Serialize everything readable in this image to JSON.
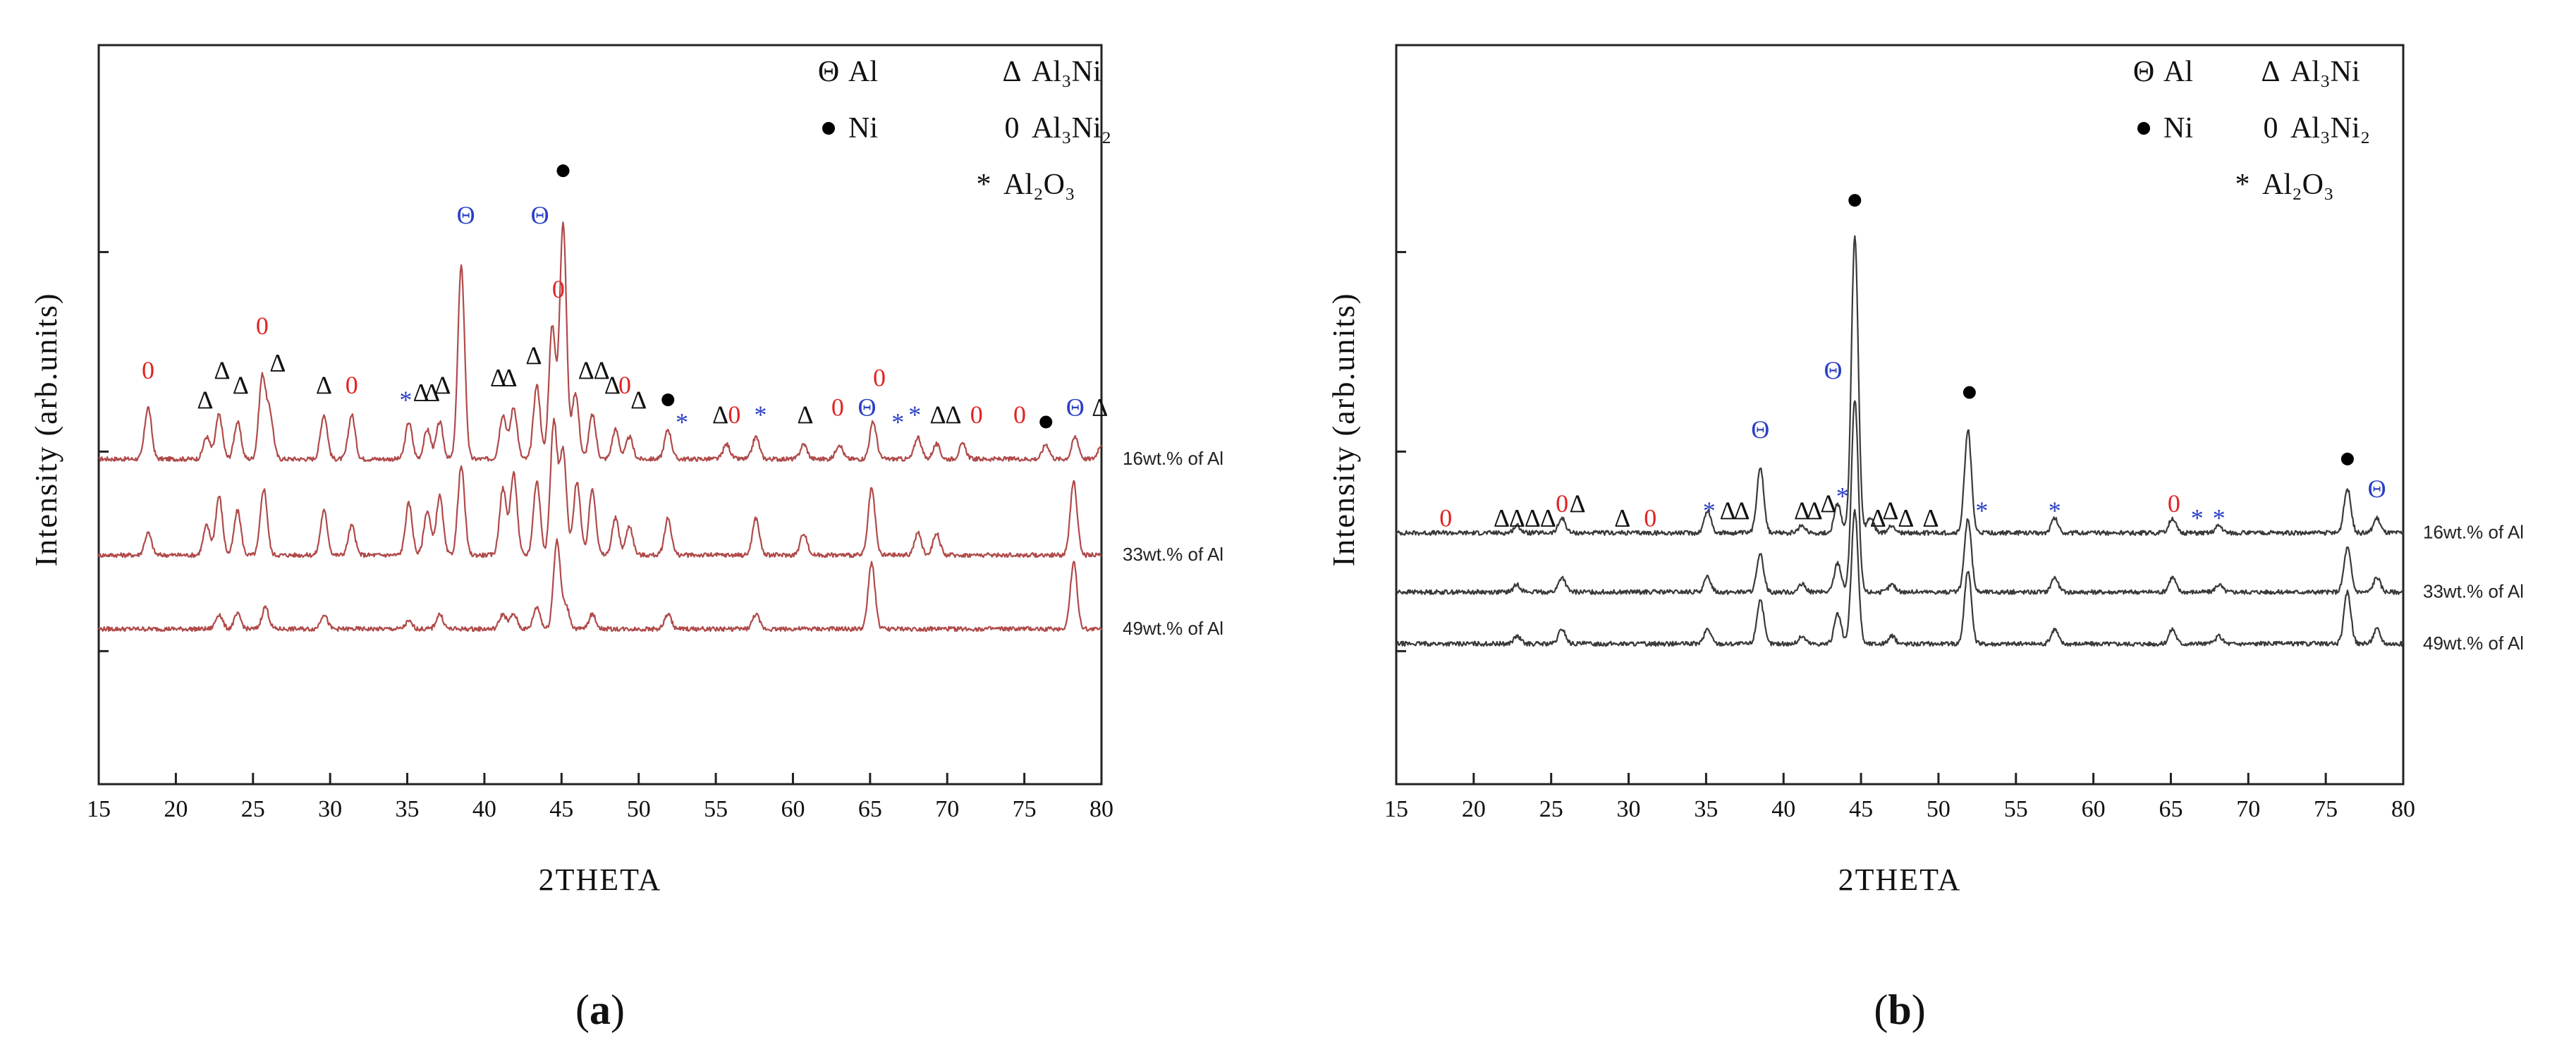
{
  "chart_data": [
    {
      "id": "a",
      "type": "line",
      "caption_open": "(",
      "caption_letter": "a",
      "caption_close": ")",
      "xlabel": "2THETA",
      "ylabel": "Intensity (arb.units)",
      "xlim": [
        15,
        80
      ],
      "xticks": [
        15,
        20,
        25,
        30,
        35,
        40,
        45,
        50,
        55,
        60,
        65,
        70,
        75,
        80
      ],
      "line_color": "#b04a4a",
      "legend": [
        {
          "symbol": "Θ",
          "text": "Al",
          "color": "#2b3fc4"
        },
        {
          "symbol": "Δ",
          "text": "Al₃Ni",
          "color": "#111111"
        },
        {
          "symbol": "●",
          "text": "Ni",
          "color": "#000000"
        },
        {
          "symbol": "0",
          "text": "Al₃Ni₂",
          "color": "#e02424"
        },
        {
          "symbol": "*",
          "text": "Al₂O₃",
          "color": "#2b3fc4"
        }
      ],
      "series": [
        {
          "name": "16wt.% of Al",
          "baseline": 0.44,
          "peaks": [
            [
              18.2,
              0.07
            ],
            [
              22.0,
              0.03
            ],
            [
              22.8,
              0.06
            ],
            [
              24.0,
              0.05
            ],
            [
              25.6,
              0.11
            ],
            [
              26.1,
              0.06
            ],
            [
              29.6,
              0.06
            ],
            [
              31.4,
              0.06
            ],
            [
              35.1,
              0.05
            ],
            [
              36.3,
              0.04
            ],
            [
              37.1,
              0.05
            ],
            [
              38.5,
              0.26
            ],
            [
              41.2,
              0.06
            ],
            [
              41.9,
              0.07
            ],
            [
              43.4,
              0.1
            ],
            [
              44.4,
              0.18
            ],
            [
              45.1,
              0.32
            ],
            [
              45.9,
              0.09
            ],
            [
              47.0,
              0.06
            ],
            [
              48.5,
              0.04
            ],
            [
              49.4,
              0.03
            ],
            [
              51.9,
              0.04
            ],
            [
              55.7,
              0.02
            ],
            [
              57.6,
              0.03
            ],
            [
              60.7,
              0.02
            ],
            [
              63.0,
              0.02
            ],
            [
              65.2,
              0.05
            ],
            [
              68.1,
              0.03
            ],
            [
              69.3,
              0.02
            ],
            [
              71.0,
              0.02
            ],
            [
              76.4,
              0.02
            ],
            [
              78.3,
              0.03
            ],
            [
              80.0,
              0.02
            ]
          ]
        },
        {
          "name": "33wt.% of Al",
          "baseline": 0.31,
          "peaks": [
            [
              18.2,
              0.03
            ],
            [
              22.0,
              0.04
            ],
            [
              22.8,
              0.08
            ],
            [
              24.0,
              0.06
            ],
            [
              25.7,
              0.09
            ],
            [
              29.6,
              0.06
            ],
            [
              31.4,
              0.04
            ],
            [
              35.1,
              0.07
            ],
            [
              36.3,
              0.06
            ],
            [
              37.1,
              0.08
            ],
            [
              38.5,
              0.12
            ],
            [
              41.2,
              0.09
            ],
            [
              41.9,
              0.11
            ],
            [
              43.4,
              0.1
            ],
            [
              44.5,
              0.18
            ],
            [
              45.1,
              0.14
            ],
            [
              46.0,
              0.1
            ],
            [
              47.0,
              0.09
            ],
            [
              48.5,
              0.05
            ],
            [
              49.4,
              0.04
            ],
            [
              51.9,
              0.05
            ],
            [
              57.6,
              0.05
            ],
            [
              60.7,
              0.03
            ],
            [
              65.1,
              0.09
            ],
            [
              68.1,
              0.03
            ],
            [
              69.3,
              0.03
            ],
            [
              78.2,
              0.1
            ]
          ]
        },
        {
          "name": "49wt.% of Al",
          "baseline": 0.21,
          "peaks": [
            [
              22.8,
              0.02
            ],
            [
              24.0,
              0.02
            ],
            [
              25.8,
              0.03
            ],
            [
              29.6,
              0.02
            ],
            [
              35.1,
              0.01
            ],
            [
              37.1,
              0.02
            ],
            [
              41.2,
              0.02
            ],
            [
              41.9,
              0.02
            ],
            [
              43.4,
              0.03
            ],
            [
              44.7,
              0.12
            ],
            [
              45.3,
              0.03
            ],
            [
              47.0,
              0.02
            ],
            [
              51.9,
              0.02
            ],
            [
              57.6,
              0.02
            ],
            [
              65.1,
              0.09
            ],
            [
              78.2,
              0.09
            ]
          ]
        }
      ],
      "markers": [
        {
          "x": 18.2,
          "y": 0.56,
          "sym": "0",
          "color": "#e02424"
        },
        {
          "x": 21.9,
          "y": 0.52,
          "sym": "Δ",
          "color": "#111111"
        },
        {
          "x": 23.0,
          "y": 0.56,
          "sym": "Δ",
          "color": "#111111"
        },
        {
          "x": 24.2,
          "y": 0.54,
          "sym": "Δ",
          "color": "#111111"
        },
        {
          "x": 25.6,
          "y": 0.62,
          "sym": "0",
          "color": "#e02424"
        },
        {
          "x": 26.6,
          "y": 0.57,
          "sym": "Δ",
          "color": "#111111"
        },
        {
          "x": 29.6,
          "y": 0.54,
          "sym": "Δ",
          "color": "#111111"
        },
        {
          "x": 31.4,
          "y": 0.54,
          "sym": "0",
          "color": "#e02424"
        },
        {
          "x": 34.9,
          "y": 0.52,
          "sym": "*",
          "color": "#2b3fc4"
        },
        {
          "x": 35.9,
          "y": 0.53,
          "sym": "Δ",
          "color": "#111111"
        },
        {
          "x": 36.6,
          "y": 0.53,
          "sym": "Δ",
          "color": "#111111"
        },
        {
          "x": 37.3,
          "y": 0.54,
          "sym": "Δ",
          "color": "#111111"
        },
        {
          "x": 38.8,
          "y": 0.77,
          "sym": "Θ",
          "color": "#2b3fc4"
        },
        {
          "x": 40.9,
          "y": 0.55,
          "sym": "Δ",
          "color": "#111111"
        },
        {
          "x": 41.6,
          "y": 0.55,
          "sym": "Δ",
          "color": "#111111"
        },
        {
          "x": 43.2,
          "y": 0.58,
          "sym": "Δ",
          "color": "#111111"
        },
        {
          "x": 43.6,
          "y": 0.77,
          "sym": "Θ",
          "color": "#2b3fc4"
        },
        {
          "x": 44.8,
          "y": 0.67,
          "sym": "0",
          "color": "#e02424"
        },
        {
          "x": 45.1,
          "y": 0.83,
          "sym": "●",
          "color": "#000000"
        },
        {
          "x": 46.6,
          "y": 0.56,
          "sym": "Δ",
          "color": "#111111"
        },
        {
          "x": 47.6,
          "y": 0.56,
          "sym": "Δ",
          "color": "#111111"
        },
        {
          "x": 48.3,
          "y": 0.54,
          "sym": "Δ",
          "color": "#111111"
        },
        {
          "x": 49.1,
          "y": 0.54,
          "sym": "0",
          "color": "#e02424"
        },
        {
          "x": 50.0,
          "y": 0.52,
          "sym": "Δ",
          "color": "#111111"
        },
        {
          "x": 51.9,
          "y": 0.52,
          "sym": "●",
          "color": "#000000"
        },
        {
          "x": 52.8,
          "y": 0.49,
          "sym": "*",
          "color": "#2b3fc4"
        },
        {
          "x": 55.3,
          "y": 0.5,
          "sym": "Δ",
          "color": "#111111"
        },
        {
          "x": 56.2,
          "y": 0.5,
          "sym": "0",
          "color": "#e02424"
        },
        {
          "x": 57.9,
          "y": 0.5,
          "sym": "*",
          "color": "#2b3fc4"
        },
        {
          "x": 60.8,
          "y": 0.5,
          "sym": "Δ",
          "color": "#111111"
        },
        {
          "x": 62.9,
          "y": 0.51,
          "sym": "0",
          "color": "#e02424"
        },
        {
          "x": 64.8,
          "y": 0.51,
          "sym": "Θ",
          "color": "#2b3fc4"
        },
        {
          "x": 65.6,
          "y": 0.55,
          "sym": "0",
          "color": "#e02424"
        },
        {
          "x": 66.8,
          "y": 0.49,
          "sym": "*",
          "color": "#2b3fc4"
        },
        {
          "x": 67.9,
          "y": 0.5,
          "sym": "*",
          "color": "#2b3fc4"
        },
        {
          "x": 69.4,
          "y": 0.5,
          "sym": "Δ",
          "color": "#111111"
        },
        {
          "x": 70.4,
          "y": 0.5,
          "sym": "Δ",
          "color": "#111111"
        },
        {
          "x": 71.9,
          "y": 0.5,
          "sym": "0",
          "color": "#e02424"
        },
        {
          "x": 74.7,
          "y": 0.5,
          "sym": "0",
          "color": "#e02424"
        },
        {
          "x": 76.4,
          "y": 0.49,
          "sym": "●",
          "color": "#000000"
        },
        {
          "x": 78.3,
          "y": 0.51,
          "sym": "Θ",
          "color": "#2b3fc4"
        },
        {
          "x": 79.9,
          "y": 0.51,
          "sym": "Δ",
          "color": "#111111"
        }
      ]
    },
    {
      "id": "b",
      "type": "line",
      "caption_open": "(",
      "caption_letter": "b",
      "caption_close": ")",
      "xlabel": "2THETA",
      "ylabel": "Intensity (arb.units)",
      "xlim": [
        15,
        80
      ],
      "xticks": [
        15,
        20,
        25,
        30,
        35,
        40,
        45,
        50,
        55,
        60,
        65,
        70,
        75,
        80
      ],
      "line_color": "#3a3a3a",
      "legend": [
        {
          "symbol": "Θ",
          "text": "Al",
          "color": "#2b3fc4"
        },
        {
          "symbol": "Δ",
          "text": "Al₃Ni",
          "color": "#111111"
        },
        {
          "symbol": "●",
          "text": "Ni",
          "color": "#000000"
        },
        {
          "symbol": "0",
          "text": "Al₃Ni₂",
          "color": "#e02424"
        },
        {
          "symbol": "*",
          "text": "Al₂O₃",
          "color": "#2b3fc4"
        }
      ],
      "series": [
        {
          "name": "16wt.% of Al",
          "baseline": 0.34,
          "peaks": [
            [
              22.8,
              0.01
            ],
            [
              25.7,
              0.02
            ],
            [
              35.1,
              0.03
            ],
            [
              38.5,
              0.09
            ],
            [
              41.2,
              0.01
            ],
            [
              43.5,
              0.04
            ],
            [
              44.6,
              0.4
            ],
            [
              45.6,
              0.02
            ],
            [
              47.0,
              0.01
            ],
            [
              51.9,
              0.14
            ],
            [
              57.5,
              0.02
            ],
            [
              65.1,
              0.02
            ],
            [
              68.1,
              0.01
            ],
            [
              76.4,
              0.06
            ],
            [
              78.3,
              0.02
            ]
          ]
        },
        {
          "name": "33wt.% of Al",
          "baseline": 0.26,
          "peaks": [
            [
              22.8,
              0.01
            ],
            [
              25.7,
              0.02
            ],
            [
              35.1,
              0.02
            ],
            [
              38.5,
              0.05
            ],
            [
              41.2,
              0.01
            ],
            [
              43.5,
              0.04
            ],
            [
              44.6,
              0.26
            ],
            [
              47.0,
              0.01
            ],
            [
              51.9,
              0.1
            ],
            [
              57.5,
              0.02
            ],
            [
              65.1,
              0.02
            ],
            [
              68.1,
              0.01
            ],
            [
              76.4,
              0.06
            ],
            [
              78.3,
              0.02
            ]
          ]
        },
        {
          "name": "49wt.% of Al",
          "baseline": 0.19,
          "peaks": [
            [
              22.8,
              0.01
            ],
            [
              25.7,
              0.02
            ],
            [
              35.1,
              0.02
            ],
            [
              38.5,
              0.06
            ],
            [
              41.2,
              0.01
            ],
            [
              43.5,
              0.04
            ],
            [
              44.6,
              0.18
            ],
            [
              47.0,
              0.01
            ],
            [
              51.9,
              0.1
            ],
            [
              57.5,
              0.02
            ],
            [
              65.1,
              0.02
            ],
            [
              68.1,
              0.01
            ],
            [
              76.4,
              0.07
            ],
            [
              78.3,
              0.02
            ]
          ]
        }
      ],
      "markers": [
        {
          "x": 18.2,
          "y": 0.36,
          "sym": "0",
          "color": "#e02424"
        },
        {
          "x": 21.8,
          "y": 0.36,
          "sym": "Δ",
          "color": "#111111"
        },
        {
          "x": 22.8,
          "y": 0.36,
          "sym": "Δ",
          "color": "#111111"
        },
        {
          "x": 23.8,
          "y": 0.36,
          "sym": "Δ",
          "color": "#111111"
        },
        {
          "x": 24.8,
          "y": 0.36,
          "sym": "Δ",
          "color": "#111111"
        },
        {
          "x": 25.7,
          "y": 0.38,
          "sym": "0",
          "color": "#e02424"
        },
        {
          "x": 26.7,
          "y": 0.38,
          "sym": "Δ",
          "color": "#111111"
        },
        {
          "x": 29.6,
          "y": 0.36,
          "sym": "Δ",
          "color": "#111111"
        },
        {
          "x": 31.4,
          "y": 0.36,
          "sym": "0",
          "color": "#e02424"
        },
        {
          "x": 35.2,
          "y": 0.37,
          "sym": "*",
          "color": "#2b3fc4"
        },
        {
          "x": 36.4,
          "y": 0.37,
          "sym": "Δ",
          "color": "#111111"
        },
        {
          "x": 37.3,
          "y": 0.37,
          "sym": "Δ",
          "color": "#111111"
        },
        {
          "x": 38.5,
          "y": 0.48,
          "sym": "Θ",
          "color": "#2b3fc4"
        },
        {
          "x": 41.2,
          "y": 0.37,
          "sym": "Δ",
          "color": "#111111"
        },
        {
          "x": 42.0,
          "y": 0.37,
          "sym": "Δ",
          "color": "#111111"
        },
        {
          "x": 42.9,
          "y": 0.38,
          "sym": "Δ",
          "color": "#111111"
        },
        {
          "x": 43.2,
          "y": 0.56,
          "sym": "Θ",
          "color": "#2b3fc4"
        },
        {
          "x": 43.8,
          "y": 0.39,
          "sym": "*",
          "color": "#2b3fc4"
        },
        {
          "x": 44.6,
          "y": 0.79,
          "sym": "●",
          "color": "#000000"
        },
        {
          "x": 46.1,
          "y": 0.36,
          "sym": "Δ",
          "color": "#111111"
        },
        {
          "x": 46.9,
          "y": 0.37,
          "sym": "Δ",
          "color": "#111111"
        },
        {
          "x": 47.9,
          "y": 0.36,
          "sym": "Δ",
          "color": "#111111"
        },
        {
          "x": 49.5,
          "y": 0.36,
          "sym": "Δ",
          "color": "#111111"
        },
        {
          "x": 52.0,
          "y": 0.53,
          "sym": "●",
          "color": "#000000"
        },
        {
          "x": 52.8,
          "y": 0.37,
          "sym": "*",
          "color": "#2b3fc4"
        },
        {
          "x": 57.5,
          "y": 0.37,
          "sym": "*",
          "color": "#2b3fc4"
        },
        {
          "x": 65.2,
          "y": 0.38,
          "sym": "0",
          "color": "#e02424"
        },
        {
          "x": 66.7,
          "y": 0.36,
          "sym": "*",
          "color": "#2b3fc4"
        },
        {
          "x": 68.1,
          "y": 0.36,
          "sym": "*",
          "color": "#2b3fc4"
        },
        {
          "x": 76.4,
          "y": 0.44,
          "sym": "●",
          "color": "#000000"
        },
        {
          "x": 78.3,
          "y": 0.4,
          "sym": "Θ",
          "color": "#2b3fc4"
        }
      ]
    }
  ]
}
